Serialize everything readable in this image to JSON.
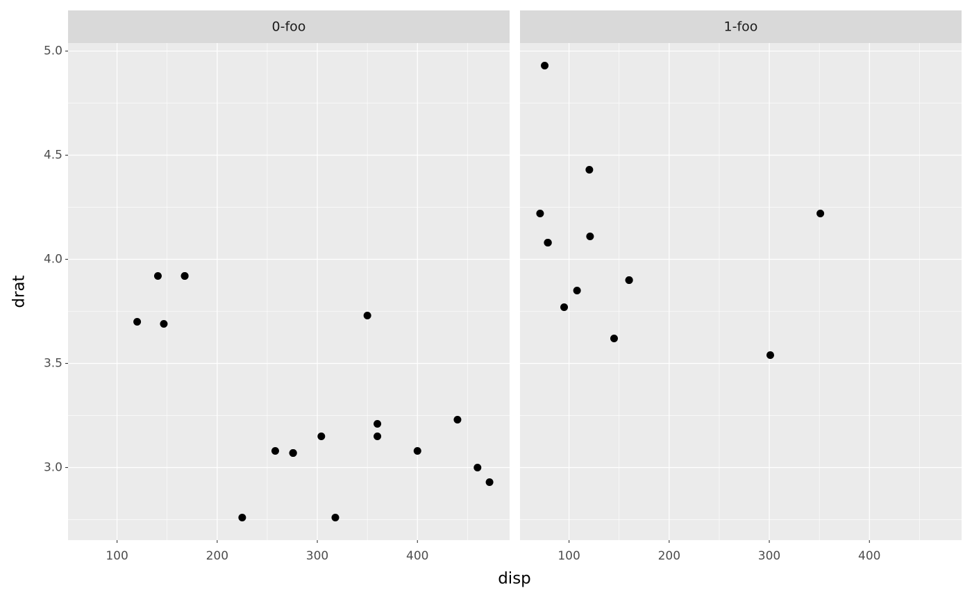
{
  "chart_data": {
    "type": "scatter",
    "xlabel": "disp",
    "ylabel": "drat",
    "color": "#000000",
    "grid": true,
    "xlim": [
      51.055,
      492.045
    ],
    "ylim": [
      2.6515,
      5.0385
    ],
    "xticks": [
      100,
      200,
      300,
      400
    ],
    "yticks": [
      {
        "value": 3,
        "label": "3.0"
      },
      {
        "value": 3.5,
        "label": "3.5"
      },
      {
        "value": 4,
        "label": "4.0"
      },
      {
        "value": 4.5,
        "label": "4.5"
      },
      {
        "value": 5,
        "label": "5.0"
      }
    ],
    "minor_xticks": [
      150,
      250,
      350,
      450
    ],
    "minor_yticks": [
      2.75,
      3.25,
      3.75,
      4.25,
      4.75
    ],
    "facets": [
      {
        "title": "0-foo",
        "x": [
          258,
          360,
          225,
          360,
          146.7,
          140.8,
          167.6,
          167.6,
          275.8,
          275.8,
          275.8,
          472,
          460,
          440,
          120.1,
          318,
          304,
          350,
          400
        ],
        "y": [
          3.08,
          3.15,
          2.76,
          3.21,
          3.69,
          3.92,
          3.92,
          3.92,
          3.07,
          3.07,
          3.07,
          2.93,
          3.0,
          3.23,
          3.7,
          2.76,
          3.15,
          3.73,
          3.08
        ]
      },
      {
        "title": "1-foo",
        "x": [
          160,
          160,
          108,
          78.7,
          75.7,
          71.1,
          79,
          120.3,
          95.1,
          351,
          145,
          301,
          121
        ],
        "y": [
          3.9,
          3.9,
          3.85,
          4.08,
          4.93,
          4.22,
          4.08,
          4.43,
          3.77,
          4.22,
          3.62,
          3.54,
          4.11
        ]
      }
    ]
  }
}
